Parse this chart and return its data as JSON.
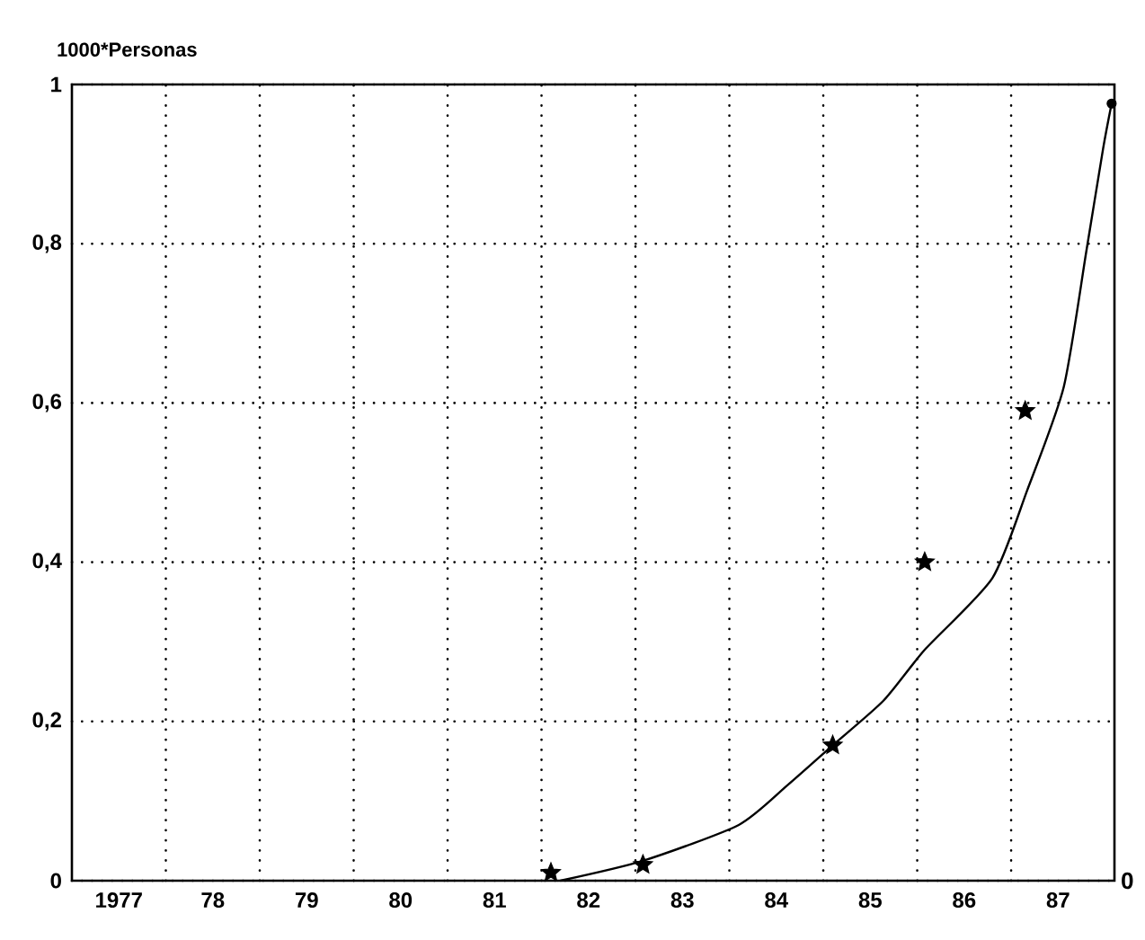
{
  "chart_data": {
    "type": "scatter",
    "ylabel": "1000*Personas",
    "xlim": [
      1976.5,
      1987.6
    ],
    "ylim": [
      0,
      1
    ],
    "xticks": [
      1977,
      {
        "value": 1978,
        "label": "78"
      },
      {
        "value": 1979,
        "label": "79"
      },
      {
        "value": 1980,
        "label": "80"
      },
      {
        "value": 1981,
        "label": "81"
      },
      {
        "value": 1982,
        "label": "82"
      },
      {
        "value": 1983,
        "label": "83"
      },
      {
        "value": 1984,
        "label": "84"
      },
      {
        "value": 1985,
        "label": "85"
      },
      {
        "value": 1986,
        "label": "86"
      },
      {
        "value": 1987,
        "label": "87"
      },
      {
        "value": 1977.5,
        "label": null
      },
      {
        "value": 1978.5,
        "label": null
      },
      {
        "value": 1979.5,
        "label": null
      },
      {
        "value": 1980.5,
        "label": null
      },
      {
        "value": 1981.5,
        "label": null
      },
      {
        "value": 1982.5,
        "label": null
      },
      {
        "value": 1983.5,
        "label": null
      },
      {
        "value": 1984.5,
        "label": null
      },
      {
        "value": 1985.5,
        "label": null
      },
      {
        "value": 1986.5,
        "label": null
      }
    ],
    "yticks": [
      0,
      {
        "value": 0.2,
        "label": "0,2"
      },
      {
        "value": 0.4,
        "label": "0,4"
      },
      {
        "value": 0.6,
        "label": "0,6"
      },
      {
        "value": 0.8,
        "label": "0,8"
      },
      1
    ],
    "grid": true,
    "series": [
      {
        "marker": "star",
        "color": "#000000",
        "x": [
          1981.6,
          1982.58,
          1984.6,
          1985.58,
          1986.65
        ],
        "values": [
          0.01,
          0.02,
          0.17,
          0.4,
          0.59
        ]
      },
      {
        "type": "line",
        "marker": "none",
        "line_style": "solid",
        "color": "#000000",
        "x": [
          1981.7,
          1982.58,
          1983.6,
          1984.12,
          1984.6,
          1985.14,
          1985.58,
          1986.3,
          1986.67,
          1987.06,
          1987.3,
          1987.48,
          1987.57
        ],
        "values": [
          0,
          0.025,
          0.07,
          0.12,
          0.17,
          0.226,
          0.29,
          0.38,
          0.49,
          0.62,
          0.79,
          0.92,
          0.976
        ]
      },
      {
        "marker": "circle",
        "color": "#000000",
        "x": [
          1987.57
        ],
        "values": [
          0.976
        ]
      }
    ],
    "annotations": [
      "0"
    ]
  }
}
